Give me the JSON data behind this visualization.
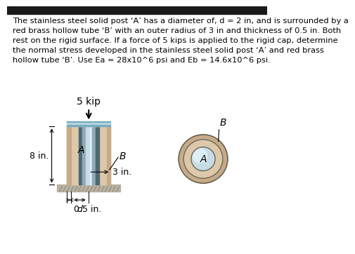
{
  "text_block": "The stainless steel solid post ‘A’ has a diameter of, d = 2 in, and is surrounded by a\nred brass hollow tube ‘B’ with an outer radius of 3 in and thickness of 0.5 in. Both\nrest on the rigid surface. If a force of 5 kips is applied to the rigid cap, determine\nthe normal stress developed in the stainless steel solid post ‘A’ and red brass\nhollow tube ‘B’. Use Ea = 28x10^6 psi and Eb = 14.6x10^6 psi.",
  "force_label": "5 kip",
  "label_A": "A",
  "label_B": "B",
  "dim_8in": "8 in.",
  "dim_3in": "3 in.",
  "dim_d": "d",
  "dim_05in": "0.5 in.",
  "bg_color": "#ffffff",
  "text_color": "#000000",
  "cap_color_top": "#b8dce8",
  "cap_color_shade": "#7aaabb",
  "post_dark": "#506870",
  "post_mid": "#8eaab8",
  "post_light": "#c8dce6",
  "post_highlight": "#deeef6",
  "tube_B_color": "#c8aa88",
  "tube_B_light": "#ddc8aa",
  "ground_fill": "#b8b0a0",
  "header_bar_color": "#1a1a1a",
  "dim_line_color": "#000000"
}
